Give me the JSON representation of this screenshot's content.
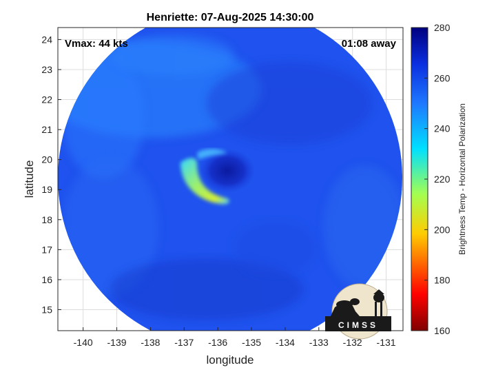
{
  "chart_data": {
    "type": "heatmap",
    "title": "Henriette: 07-Aug-2025 14:30:00",
    "xlabel": "longitude",
    "ylabel": "latitude",
    "xlim": [
      -140.75,
      -130.5
    ],
    "ylim": [
      14.3,
      24.4
    ],
    "xticks": [
      -140,
      -139,
      -138,
      -137,
      -136,
      -135,
      -134,
      -133,
      -132,
      -131
    ],
    "yticks": [
      15,
      16,
      17,
      18,
      19,
      20,
      21,
      22,
      23,
      24
    ],
    "grid": true,
    "annotations": {
      "vmax": "Vmax: 44 kts",
      "away": "01:08 away"
    },
    "storm_center": {
      "lon": -135.7,
      "lat": 19.6
    },
    "coldest_band": {
      "lon": -135.9,
      "lat": 18.6,
      "value": 218
    },
    "background_value": 262,
    "colorbar": {
      "label": "Brightness Temp - Horizontal Polarization",
      "min": 160,
      "max": 280,
      "ticks": [
        160,
        180,
        200,
        220,
        240,
        260,
        280
      ]
    },
    "logo_text": "CIMSS"
  }
}
